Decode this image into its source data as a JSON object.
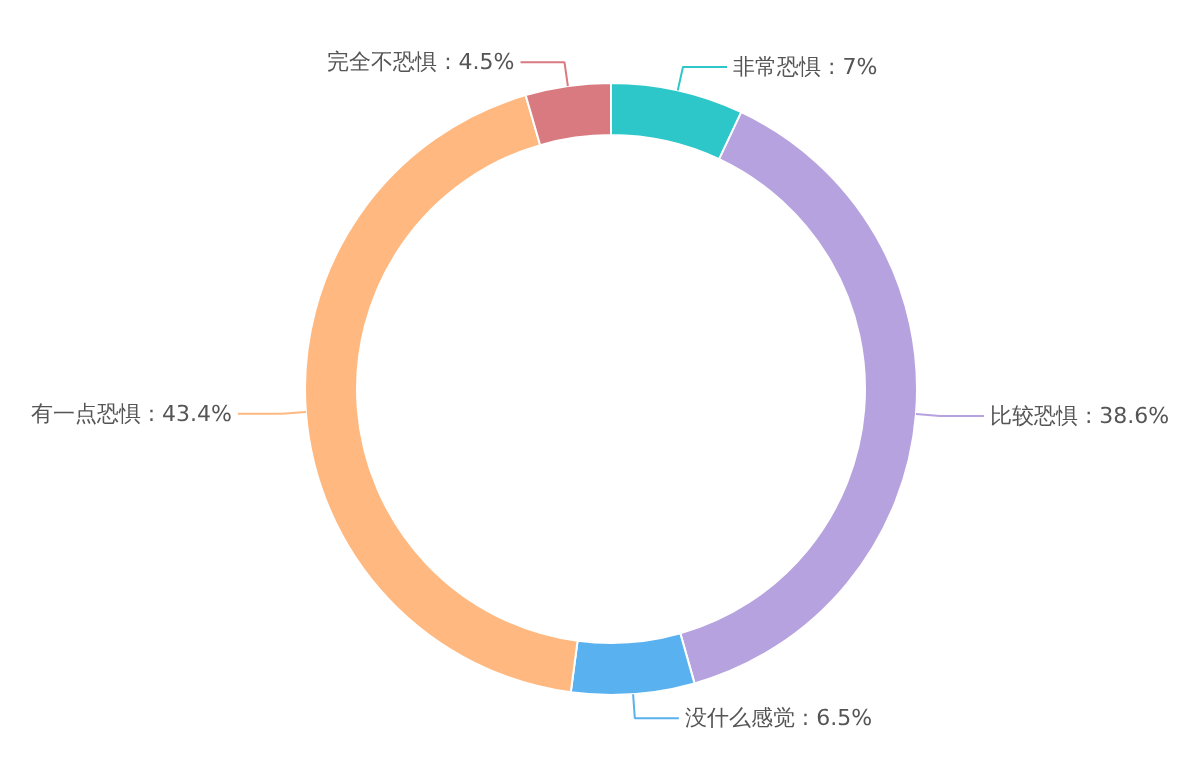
{
  "chart_data": {
    "type": "donut",
    "categories": [
      "非常恐惧",
      "比较恐惧",
      "没什么感觉",
      "有一点恐惧",
      "完全不恐惧"
    ],
    "values": [
      7,
      38.6,
      6.5,
      43.4,
      4.5
    ],
    "value_labels": [
      "7%",
      "38.6%",
      "6.5%",
      "43.4%",
      "4.5%"
    ],
    "colors": [
      "#2ec7c9",
      "#b6a2de",
      "#5ab1ef",
      "#ffb980",
      "#d87a80"
    ]
  }
}
